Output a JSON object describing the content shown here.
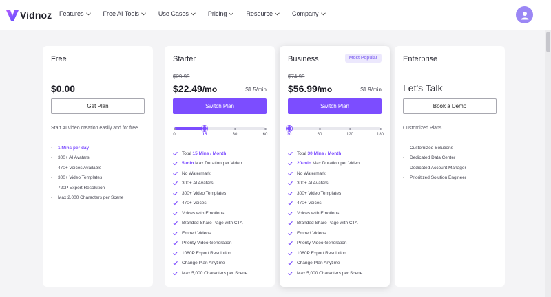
{
  "brand": {
    "name": "Vidnoz",
    "accent": "#7c4dff"
  },
  "nav": [
    {
      "label": "Features"
    },
    {
      "label": "Free AI Tools"
    },
    {
      "label": "Use Cases"
    },
    {
      "label": "Pricing"
    },
    {
      "label": "Resource"
    },
    {
      "label": "Company"
    }
  ],
  "plans": [
    {
      "name": "Free",
      "price": "$0.00",
      "button": "Get Plan",
      "description": "Start AI video creation easily and for free",
      "features": [
        {
          "text": "1 Mins per day",
          "highlight": true
        },
        {
          "text": "300+ AI Avatars"
        },
        {
          "text": "470+ Voices Available"
        },
        {
          "text": "300+ Video Templates"
        },
        {
          "text": "720P Export Resolution"
        },
        {
          "text": "Max 2,000 Characters per Scene"
        }
      ]
    },
    {
      "name": "Starter",
      "old_price": "$29.99",
      "price": "$22.49",
      "price_unit": "/mo",
      "per_min": "$1.5/min",
      "button": "Switch Plan",
      "slider": {
        "ticks": [
          "0",
          "15",
          "30",
          "60"
        ],
        "selected_index": 1,
        "selected_fraction": 0.33
      },
      "features": [
        {
          "strong": "15 Mins / Month",
          "prefix": "Total "
        },
        {
          "strong": "5-min",
          "text": " Max Duration per Video"
        },
        {
          "text": "No Watermark"
        },
        {
          "text": "300+ AI Avatars"
        },
        {
          "text": "300+ Video Templates"
        },
        {
          "text": "470+ Voices"
        },
        {
          "text": "Voices with Emotions"
        },
        {
          "text": "Branded Share Page with CTA"
        },
        {
          "text": "Embed Videos"
        },
        {
          "text": "Priority Video Generation"
        },
        {
          "text": "1080P Export Resolution"
        },
        {
          "text": "Change Plan Anytime"
        },
        {
          "text": "Max 5,000 Characters per Scene"
        }
      ]
    },
    {
      "name": "Business",
      "badge": "Most Popular",
      "old_price": "$74.99",
      "price": "$56.99",
      "price_unit": "/mo",
      "per_min": "$1.9/min",
      "button": "Switch Plan",
      "slider": {
        "ticks": [
          "30",
          "60",
          "120",
          "180"
        ],
        "selected_index": 0,
        "selected_fraction": 0.0
      },
      "features": [
        {
          "strong": "30 Mins / Month",
          "prefix": "Total "
        },
        {
          "strong": "20-min",
          "text": " Max Duration per Video"
        },
        {
          "text": "No Watermark"
        },
        {
          "text": "300+ AI Avatars"
        },
        {
          "text": "300+ Video Templates"
        },
        {
          "text": "470+ Voices"
        },
        {
          "text": "Voices with Emotions"
        },
        {
          "text": "Branded Share Page with CTA"
        },
        {
          "text": "Embed Videos"
        },
        {
          "text": "Priority Video Generation"
        },
        {
          "text": "1080P Export Resolution"
        },
        {
          "text": "Change Plan Anytime"
        },
        {
          "text": "Max 5,000 Characters per Scene"
        }
      ]
    },
    {
      "name": "Enterprise",
      "headline": "Let's Talk",
      "button": "Book a Demo",
      "description": "Customized Plans",
      "features": [
        {
          "text": "Customized Solutions"
        },
        {
          "text": "Dedicated Data Center"
        },
        {
          "text": "Dedicated Account Manager"
        },
        {
          "text": "Prioritized Solution Engineer"
        }
      ]
    }
  ]
}
